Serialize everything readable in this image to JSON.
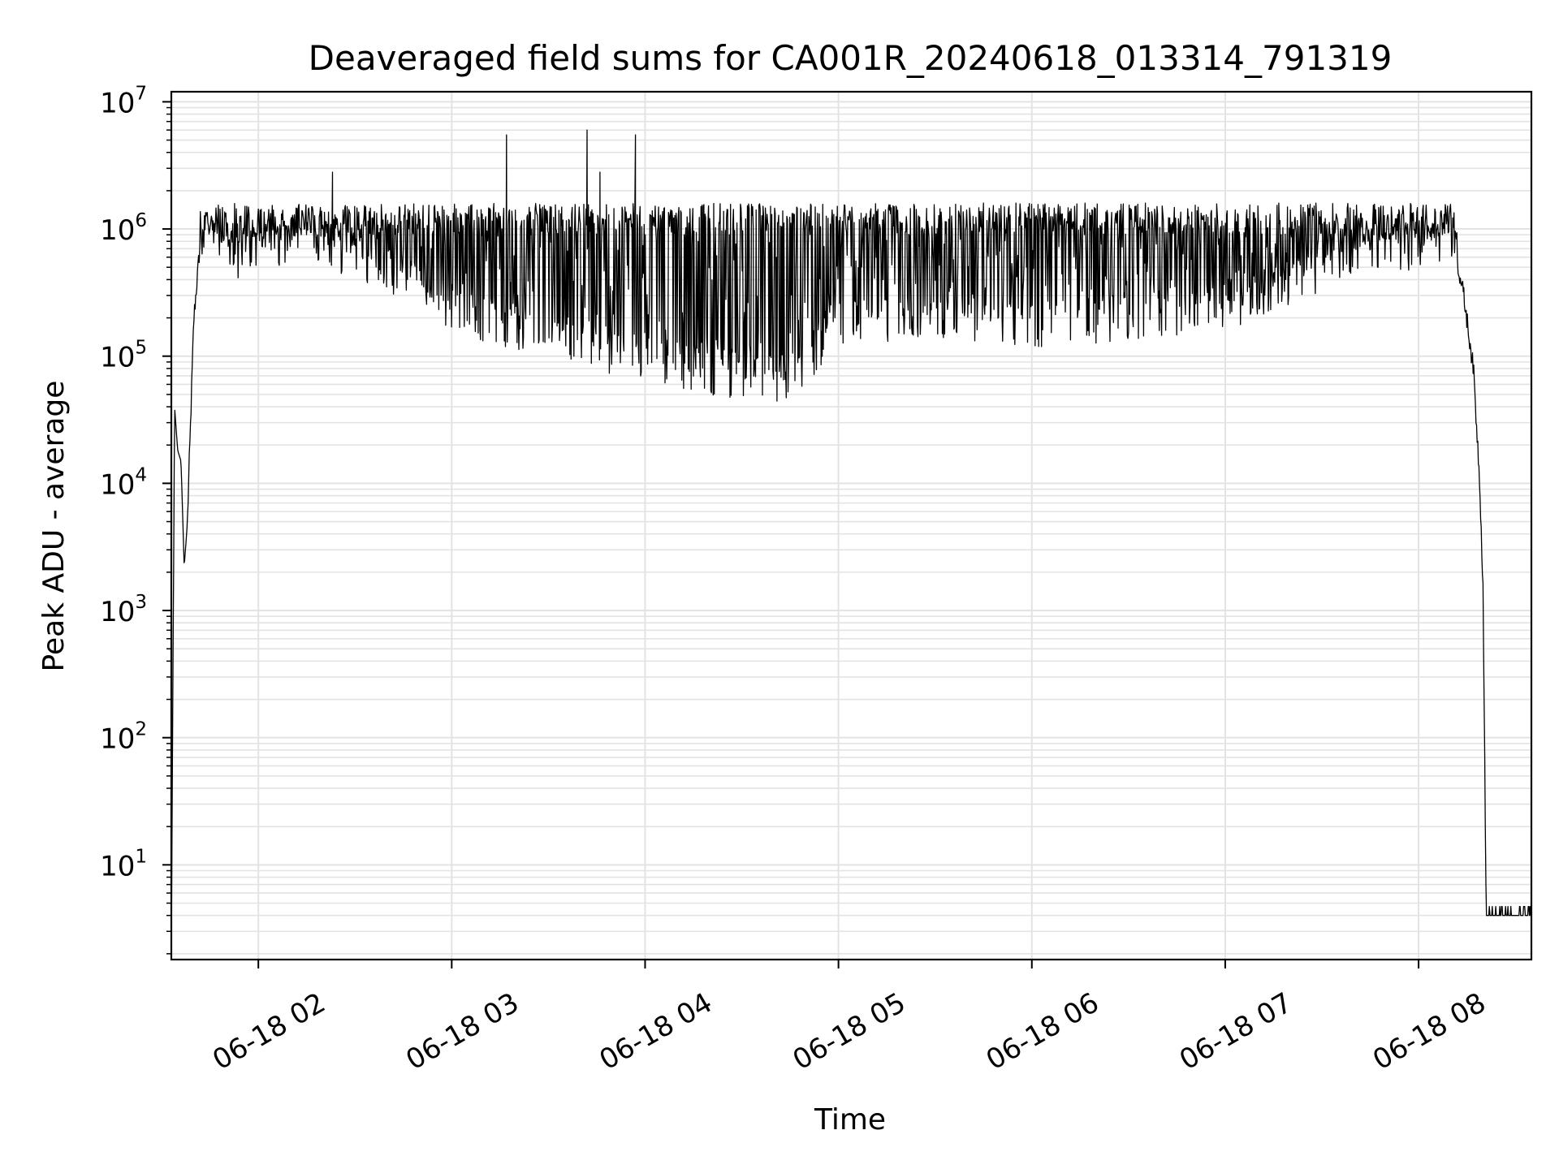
{
  "chart_data": {
    "type": "line",
    "title": "Deaveraged field sums for CA001R_20240618_013314_791319",
    "xlabel": "Time",
    "ylabel": "Peak ADU - average",
    "yscale": "log",
    "grid": true,
    "grid_minor": true,
    "line_color": "#000000",
    "grid_color": "#e3e3e3",
    "ylim": [
      1.8,
      12000000
    ],
    "xlim": [
      "2024-06-18 01:33",
      "2024-06-18 08:35"
    ],
    "x_tick_labels": [
      "06-18 02",
      "06-18 03",
      "06-18 04",
      "06-18 05",
      "06-18 06",
      "06-18 07",
      "06-18 08"
    ],
    "x_ticks": [
      "2024-06-18 02:00",
      "2024-06-18 03:00",
      "2024-06-18 04:00",
      "2024-06-18 05:00",
      "2024-06-18 06:00",
      "2024-06-18 07:00",
      "2024-06-18 08:00"
    ],
    "y_ticks": [
      {
        "base": "10",
        "exp": "1",
        "value": 10
      },
      {
        "base": "10",
        "exp": "2",
        "value": 100
      },
      {
        "base": "10",
        "exp": "3",
        "value": 1000
      },
      {
        "base": "10",
        "exp": "4",
        "value": 10000
      },
      {
        "base": "10",
        "exp": "5",
        "value": 100000
      },
      {
        "base": "10",
        "exp": "6",
        "value": 1000000
      },
      {
        "base": "10",
        "exp": "7",
        "value": 10000000
      }
    ],
    "series": [
      {
        "points": [
          [
            "2024-06-18 01:33",
            2
          ],
          [
            "2024-06-18 01:34",
            40000
          ],
          [
            "2024-06-18 01:35",
            18000
          ],
          [
            "2024-06-18 01:36",
            15000
          ],
          [
            "2024-06-18 01:37",
            2200
          ],
          [
            "2024-06-18 01:38",
            5000
          ],
          [
            "2024-06-18 01:40",
            200000
          ],
          [
            "2024-06-18 01:42",
            800000
          ],
          [
            "2024-06-18 01:45",
            1200000
          ],
          [
            "2024-06-18 01:50",
            600000
          ],
          [
            "2024-06-18 02:00",
            700000
          ],
          [
            "2024-06-18 02:15",
            900000
          ],
          [
            "2024-06-18 02:30",
            600000
          ],
          [
            "2024-06-18 02:45",
            400000
          ],
          [
            "2024-06-18 03:00",
            250000
          ],
          [
            "2024-06-18 03:15",
            180000
          ],
          [
            "2024-06-18 03:30",
            150000
          ],
          [
            "2024-06-18 03:45",
            120000
          ],
          [
            "2024-06-18 04:00",
            100000
          ],
          [
            "2024-06-18 04:15",
            80000
          ],
          [
            "2024-06-18 04:30",
            70000
          ],
          [
            "2024-06-18 04:45",
            65000
          ],
          [
            "2024-06-18 05:00",
            200000
          ],
          [
            "2024-06-18 05:30",
            200000
          ],
          [
            "2024-06-18 06:00",
            180000
          ],
          [
            "2024-06-18 06:30",
            200000
          ],
          [
            "2024-06-18 07:00",
            250000
          ],
          [
            "2024-06-18 07:30",
            500000
          ],
          [
            "2024-06-18 07:45",
            800000
          ],
          [
            "2024-06-18 08:00",
            700000
          ],
          [
            "2024-06-18 08:10",
            1000000
          ],
          [
            "2024-06-18 08:14",
            300000
          ],
          [
            "2024-06-18 08:17",
            80000
          ],
          [
            "2024-06-18 08:19",
            10000
          ],
          [
            "2024-06-18 08:20",
            1500
          ],
          [
            "2024-06-18 08:21",
            4
          ],
          [
            "2024-06-18 08:35",
            4
          ]
        ],
        "spikes": [
          [
            "2024-06-18 02:23",
            2800000
          ],
          [
            "2024-06-18 03:17",
            5500000
          ],
          [
            "2024-06-18 03:42",
            6000000
          ],
          [
            "2024-06-18 03:46",
            2800000
          ],
          [
            "2024-06-18 03:57",
            5500000
          ]
        ]
      }
    ]
  }
}
